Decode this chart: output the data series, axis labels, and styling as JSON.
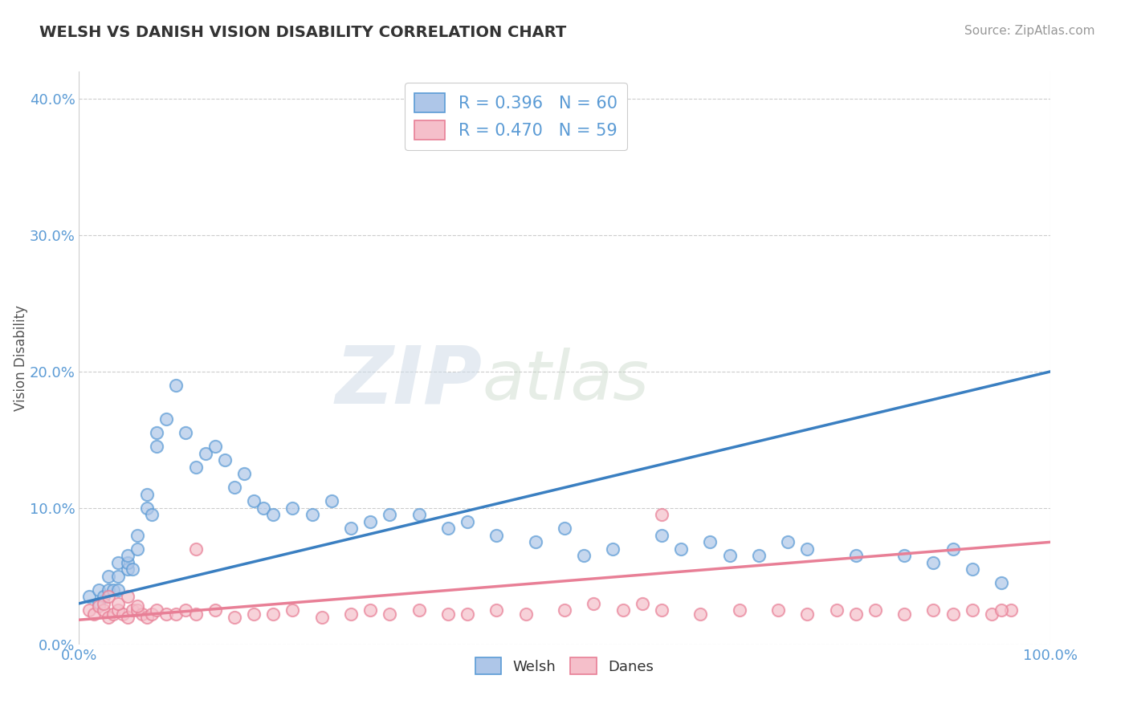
{
  "title": "WELSH VS DANISH VISION DISABILITY CORRELATION CHART",
  "source": "Source: ZipAtlas.com",
  "ylabel": "Vision Disability",
  "xlim": [
    0,
    1.0
  ],
  "ylim": [
    0,
    0.42
  ],
  "ytick_vals": [
    0.0,
    0.1,
    0.2,
    0.3,
    0.4
  ],
  "welsh_color": "#aec6e8",
  "danish_color": "#f5bfca",
  "welsh_edge_color": "#5b9bd5",
  "danish_edge_color": "#e87f96",
  "welsh_line_color": "#3a7fc1",
  "danish_line_color": "#e87f96",
  "tick_color": "#5b9bd5",
  "legend_label_welsh": "Welsh",
  "legend_label_danish": "Danes",
  "legend_r_welsh": "R = 0.396",
  "legend_n_welsh": "N = 60",
  "legend_r_danish": "R = 0.470",
  "legend_n_danish": "N = 59",
  "welsh_x": [
    0.01,
    0.02,
    0.02,
    0.025,
    0.03,
    0.03,
    0.035,
    0.04,
    0.04,
    0.04,
    0.05,
    0.05,
    0.05,
    0.055,
    0.06,
    0.06,
    0.07,
    0.07,
    0.075,
    0.08,
    0.08,
    0.09,
    0.1,
    0.11,
    0.12,
    0.13,
    0.14,
    0.15,
    0.16,
    0.17,
    0.18,
    0.19,
    0.2,
    0.22,
    0.24,
    0.26,
    0.28,
    0.3,
    0.32,
    0.35,
    0.38,
    0.4,
    0.43,
    0.47,
    0.5,
    0.52,
    0.55,
    0.6,
    0.62,
    0.65,
    0.67,
    0.7,
    0.73,
    0.75,
    0.8,
    0.85,
    0.88,
    0.9,
    0.92,
    0.95
  ],
  "welsh_y": [
    0.035,
    0.04,
    0.03,
    0.035,
    0.04,
    0.05,
    0.04,
    0.04,
    0.05,
    0.06,
    0.055,
    0.06,
    0.065,
    0.055,
    0.07,
    0.08,
    0.1,
    0.11,
    0.095,
    0.145,
    0.155,
    0.165,
    0.19,
    0.155,
    0.13,
    0.14,
    0.145,
    0.135,
    0.115,
    0.125,
    0.105,
    0.1,
    0.095,
    0.1,
    0.095,
    0.105,
    0.085,
    0.09,
    0.095,
    0.095,
    0.085,
    0.09,
    0.08,
    0.075,
    0.085,
    0.065,
    0.07,
    0.08,
    0.07,
    0.075,
    0.065,
    0.065,
    0.075,
    0.07,
    0.065,
    0.065,
    0.06,
    0.07,
    0.055,
    0.045
  ],
  "danish_x": [
    0.01,
    0.015,
    0.02,
    0.025,
    0.03,
    0.035,
    0.04,
    0.045,
    0.05,
    0.055,
    0.06,
    0.065,
    0.07,
    0.075,
    0.08,
    0.09,
    0.1,
    0.11,
    0.12,
    0.14,
    0.16,
    0.18,
    0.2,
    0.22,
    0.25,
    0.28,
    0.3,
    0.32,
    0.35,
    0.38,
    0.4,
    0.43,
    0.46,
    0.5,
    0.53,
    0.56,
    0.58,
    0.6,
    0.64,
    0.68,
    0.72,
    0.75,
    0.78,
    0.82,
    0.85,
    0.88,
    0.9,
    0.92,
    0.94,
    0.96,
    0.025,
    0.03,
    0.04,
    0.05,
    0.06,
    0.12,
    0.8,
    0.6,
    0.95
  ],
  "danish_y": [
    0.025,
    0.022,
    0.028,
    0.025,
    0.02,
    0.022,
    0.025,
    0.022,
    0.02,
    0.025,
    0.025,
    0.022,
    0.02,
    0.022,
    0.025,
    0.022,
    0.022,
    0.025,
    0.022,
    0.025,
    0.02,
    0.022,
    0.022,
    0.025,
    0.02,
    0.022,
    0.025,
    0.022,
    0.025,
    0.022,
    0.022,
    0.025,
    0.022,
    0.025,
    0.03,
    0.025,
    0.03,
    0.025,
    0.022,
    0.025,
    0.025,
    0.022,
    0.025,
    0.025,
    0.022,
    0.025,
    0.022,
    0.025,
    0.022,
    0.025,
    0.03,
    0.035,
    0.03,
    0.035,
    0.028,
    0.07,
    0.022,
    0.095,
    0.025
  ],
  "watermark_zip": "ZIP",
  "watermark_atlas": "atlas",
  "background_color": "#ffffff",
  "grid_color": "#cccccc",
  "welsh_line_y0": 0.03,
  "welsh_line_y1": 0.2,
  "danish_line_y0": 0.018,
  "danish_line_y1": 0.075
}
